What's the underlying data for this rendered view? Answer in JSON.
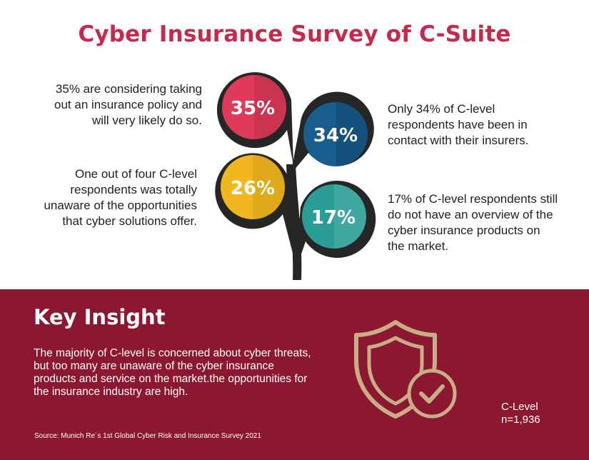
{
  "title": "Cyber Insurance Survey of C-Suite",
  "stats": [
    {
      "label": "35%",
      "text": "35% are considering taking out an insurance policy and will very likely do so.",
      "color": "#e03a5a"
    },
    {
      "label": "34%",
      "text": "Only 34% of C-level respondents have been in contact with their insurers.",
      "color": "#175e8f"
    },
    {
      "label": "26%",
      "text": "One out of four C-level respondents was totally unaware of the opportunities that cyber solutions offer.",
      "color": "#f2b61e"
    },
    {
      "label": "17%",
      "text": "17% of C-level respondents still do not have an overview of the cyber insurance products on the market.",
      "color": "#2a9d96"
    }
  ],
  "colors": {
    "bubble_ring": "#262626",
    "accent": "#c9284e",
    "banner": "#8c1730",
    "shield": "#c9ad86"
  },
  "insight": {
    "title": "Key Insight",
    "body": "The majority of C-level is concerned about cyber threats, but too many are unaware of the cyber insurance products and service on the market.the opportunities for the insurance industry are high.",
    "icon": "shield-check-icon"
  },
  "sample": {
    "line1": "C-Level",
    "line2": "n=1,936"
  },
  "source": "Source: Munich Re´s 1st Global Cyber Risk and Insurance Survey 2021"
}
